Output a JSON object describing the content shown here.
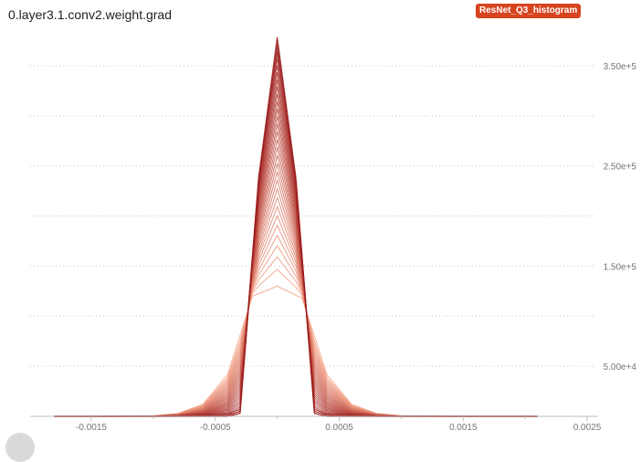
{
  "header": {
    "title": "0.layer3.1.conv2.weight.grad",
    "run_badge": "ResNet_Q3_histogram",
    "run_color": "#d64520"
  },
  "chart_data": {
    "type": "line",
    "title": "0.layer3.1.conv2.weight.grad",
    "xlabel": "",
    "ylabel": "",
    "xlim": [
      -0.0019,
      0.0025
    ],
    "ylim": [
      0,
      380000
    ],
    "x_ticks": [
      -0.0015,
      -0.0005,
      0.0005,
      0.0015,
      0.0025
    ],
    "x_tick_labels": [
      "-0.0015",
      "-0.0005",
      "0.0005",
      "0.0015",
      "0.0025"
    ],
    "y_ticks": [
      50000,
      150000,
      250000,
      350000
    ],
    "y_tick_labels": [
      "5.00e+4",
      "1.50e+5",
      "2.50e+5",
      "3.50e+5"
    ],
    "grid": true,
    "y_axis_position": "right",
    "color_light": "#f6a488",
    "color_dark": "#9b1a1a",
    "series_note_count": 30,
    "early_step": {
      "x": [
        -0.0018,
        -0.0014,
        -0.001,
        -0.0008,
        -0.0006,
        -0.0004,
        -0.0002,
        0.0,
        0.0002,
        0.0004,
        0.0006,
        0.0008,
        0.001,
        0.0014,
        0.0021
      ],
      "values": [
        0,
        0,
        500,
        3000,
        12000,
        42000,
        120000,
        130000,
        118000,
        42000,
        12000,
        3000,
        500,
        0,
        0
      ]
    },
    "late_step": {
      "x": [
        -0.0018,
        -0.0014,
        -0.001,
        -0.0006,
        -0.0004,
        -0.0003,
        -0.00015,
        0.0,
        0.00015,
        0.0003,
        0.0004,
        0.0006,
        0.001,
        0.0014,
        0.0021
      ],
      "values": [
        0,
        0,
        0,
        0,
        0,
        3000,
        238000,
        378000,
        238000,
        3000,
        0,
        0,
        0,
        0,
        0
      ]
    }
  }
}
